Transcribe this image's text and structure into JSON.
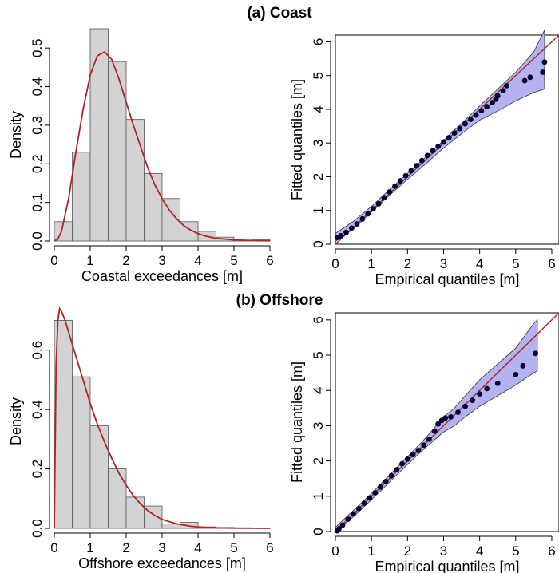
{
  "panels": [
    {
      "title": "(a) Coast"
    },
    {
      "title": "(b) Offshore"
    }
  ],
  "colors": {
    "histogram_fill": "#d3d3d3",
    "density_line": "#b22222",
    "confidence_band": "#b3b3f2",
    "points": "#000033",
    "reference_line": "#b22222"
  },
  "chart_data": [
    {
      "type": "bar",
      "panel": "(a) Coast",
      "xlabel": "Coastal exceedances [m]",
      "ylabel": "Density",
      "xlim": [
        0,
        6
      ],
      "ylim": [
        0,
        0.55
      ],
      "xticks": [
        "0",
        "1",
        "2",
        "3",
        "4",
        "5",
        "6"
      ],
      "yticks": [
        "0.0",
        "0.1",
        "0.2",
        "0.3",
        "0.4",
        "0.5"
      ],
      "bin_width": 0.5,
      "bin_starts": [
        0,
        0.5,
        1.0,
        1.5,
        2.0,
        2.5,
        3.0,
        3.5,
        4.0,
        4.5,
        5.0,
        5.5
      ],
      "values": [
        0.05,
        0.23,
        0.55,
        0.465,
        0.315,
        0.175,
        0.11,
        0.05,
        0.025,
        0.01,
        0.005,
        0.003
      ],
      "fitted_density": {
        "x": [
          0,
          0.1,
          0.2,
          0.4,
          0.6,
          0.8,
          1.0,
          1.2,
          1.4,
          1.6,
          1.8,
          2.0,
          2.2,
          2.4,
          2.6,
          2.8,
          3.0,
          3.2,
          3.4,
          3.6,
          3.8,
          4.0,
          4.2,
          4.5,
          5.0,
          5.5,
          6.0
        ],
        "y": [
          0.0,
          0.005,
          0.025,
          0.11,
          0.23,
          0.34,
          0.43,
          0.48,
          0.49,
          0.47,
          0.42,
          0.36,
          0.3,
          0.245,
          0.19,
          0.145,
          0.11,
          0.08,
          0.058,
          0.04,
          0.028,
          0.019,
          0.013,
          0.007,
          0.003,
          0.001,
          0.0005
        ]
      }
    },
    {
      "type": "scatter",
      "panel": "(a) Coast",
      "xlabel": "Empirical quantiles [m]",
      "ylabel": "Fitted quantiles [m]",
      "xlim": [
        0,
        6.2
      ],
      "ylim": [
        0,
        6.2
      ],
      "xticks": [
        "0",
        "1",
        "2",
        "3",
        "4",
        "5",
        "6"
      ],
      "yticks": [
        "0",
        "1",
        "2",
        "3",
        "4",
        "5",
        "6"
      ],
      "points": {
        "x": [
          0.05,
          0.15,
          0.3,
          0.45,
          0.6,
          0.75,
          0.9,
          1.05,
          1.2,
          1.35,
          1.5,
          1.65,
          1.8,
          1.95,
          2.1,
          2.25,
          2.4,
          2.55,
          2.7,
          2.85,
          3.0,
          3.15,
          3.3,
          3.45,
          3.6,
          3.75,
          3.9,
          4.05,
          4.2,
          4.35,
          4.45,
          4.5,
          4.65,
          4.75,
          5.25,
          5.4,
          5.75,
          5.8
        ],
        "y": [
          0.2,
          0.25,
          0.35,
          0.48,
          0.6,
          0.75,
          0.9,
          1.05,
          1.2,
          1.38,
          1.55,
          1.72,
          1.88,
          2.03,
          2.18,
          2.33,
          2.48,
          2.63,
          2.77,
          2.9,
          3.03,
          3.16,
          3.3,
          3.43,
          3.57,
          3.7,
          3.83,
          3.96,
          4.08,
          4.2,
          4.3,
          4.4,
          4.55,
          4.7,
          4.85,
          4.95,
          5.1,
          5.4
        ]
      },
      "band": {
        "x": [
          0,
          0.5,
          1,
          1.5,
          2,
          2.5,
          3,
          3.5,
          4,
          4.5,
          5,
          5.5,
          5.8
        ],
        "lower": [
          0.08,
          0.45,
          0.95,
          1.45,
          1.92,
          2.38,
          2.85,
          3.28,
          3.68,
          3.95,
          4.25,
          4.5,
          4.6
        ],
        "upper": [
          0.32,
          0.68,
          1.12,
          1.62,
          2.1,
          2.58,
          3.08,
          3.58,
          4.1,
          4.6,
          5.1,
          5.7,
          6.35
        ]
      },
      "reference_line": {
        "x": [
          0,
          6.2
        ],
        "y": [
          0,
          6.2
        ]
      }
    },
    {
      "type": "bar",
      "panel": "(b) Offshore",
      "xlabel": "Offshore exceedances [m]",
      "ylabel": "Density",
      "xlim": [
        0,
        6
      ],
      "ylim": [
        0,
        0.72
      ],
      "xticks": [
        "0",
        "1",
        "2",
        "3",
        "4",
        "5",
        "6"
      ],
      "yticks": [
        "0.0",
        "0.2",
        "0.4",
        "0.6"
      ],
      "bin_width": 0.5,
      "bin_starts": [
        0,
        0.5,
        1.0,
        1.5,
        2.0,
        2.5,
        3.0,
        3.5,
        4.0,
        4.5,
        5.0,
        5.5
      ],
      "values": [
        0.7,
        0.51,
        0.345,
        0.2,
        0.105,
        0.075,
        0.015,
        0.02,
        0.005,
        0.003,
        0.002,
        0.001
      ],
      "fitted_density": {
        "x": [
          0,
          0.05,
          0.1,
          0.15,
          0.2,
          0.3,
          0.4,
          0.6,
          0.8,
          1.0,
          1.2,
          1.4,
          1.6,
          1.8,
          2.0,
          2.2,
          2.4,
          2.6,
          2.8,
          3.0,
          3.4,
          3.8,
          4.2,
          4.6,
          5.0,
          5.5,
          6.0
        ],
        "y": [
          0.0,
          0.55,
          0.7,
          0.74,
          0.73,
          0.7,
          0.66,
          0.58,
          0.5,
          0.42,
          0.35,
          0.29,
          0.235,
          0.185,
          0.145,
          0.11,
          0.082,
          0.06,
          0.043,
          0.03,
          0.015,
          0.007,
          0.003,
          0.0015,
          0.0007,
          0.0003,
          0.0001
        ]
      }
    },
    {
      "type": "scatter",
      "panel": "(b) Offshore",
      "xlabel": "Empirical quantiles [m]",
      "ylabel": "Fitted quantiles [m]",
      "xlim": [
        0,
        6.2
      ],
      "ylim": [
        0,
        6.2
      ],
      "xticks": [
        "0",
        "1",
        "2",
        "3",
        "4",
        "5",
        "6"
      ],
      "yticks": [
        "0",
        "1",
        "2",
        "3",
        "4",
        "5",
        "6"
      ],
      "points": {
        "x": [
          0.05,
          0.1,
          0.2,
          0.35,
          0.5,
          0.65,
          0.8,
          0.95,
          1.1,
          1.25,
          1.4,
          1.55,
          1.7,
          1.85,
          2.0,
          2.15,
          2.3,
          2.45,
          2.6,
          2.75,
          2.85,
          2.95,
          3.05,
          3.2,
          3.4,
          3.6,
          3.8,
          4.0,
          4.2,
          4.5,
          5.0,
          5.2,
          5.55
        ],
        "y": [
          0.02,
          0.08,
          0.18,
          0.35,
          0.5,
          0.65,
          0.8,
          0.95,
          1.1,
          1.26,
          1.42,
          1.58,
          1.75,
          1.92,
          2.05,
          2.18,
          2.3,
          2.45,
          2.62,
          2.85,
          3.05,
          3.15,
          3.22,
          3.25,
          3.38,
          3.55,
          3.72,
          3.9,
          4.05,
          4.2,
          4.45,
          4.7,
          5.05
        ]
      },
      "band": {
        "x": [
          0,
          0.5,
          1,
          1.5,
          2,
          2.5,
          3,
          3.3,
          3.6,
          4,
          4.5,
          5,
          5.5,
          5.6
        ],
        "lower": [
          0.0,
          0.42,
          0.9,
          1.4,
          1.9,
          2.38,
          2.82,
          3.0,
          3.25,
          3.55,
          3.85,
          4.15,
          4.5,
          4.55
        ],
        "upper": [
          0.12,
          0.6,
          1.08,
          1.6,
          2.12,
          2.65,
          3.25,
          3.5,
          3.85,
          4.3,
          4.75,
          5.2,
          5.9,
          6.0
        ]
      },
      "reference_line": {
        "x": [
          0,
          6.2
        ],
        "y": [
          0,
          6.2
        ]
      }
    }
  ]
}
